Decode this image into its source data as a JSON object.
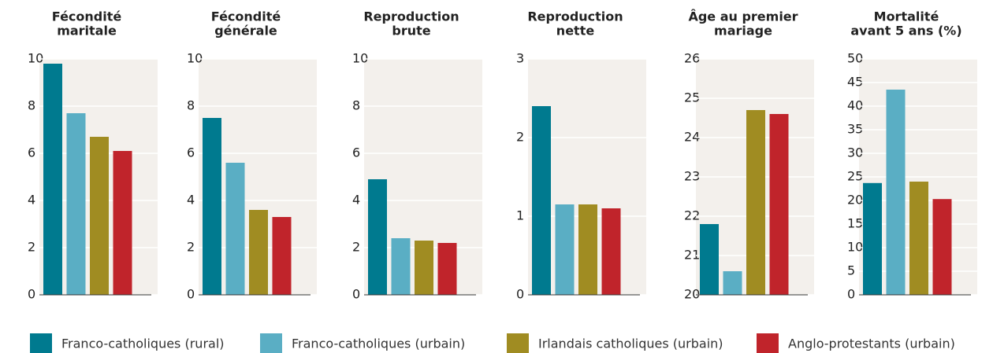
{
  "legend": [
    {
      "name": "Franco-catholiques (rural)",
      "color": "#007a8f"
    },
    {
      "name": "Franco-catholiques (urbain)",
      "color": "#5aaec4"
    },
    {
      "name": "Irlandais catholiques (urbain)",
      "color": "#a08c22"
    },
    {
      "name": "Anglo-protestants (urbain)",
      "color": "#c0242b"
    }
  ],
  "chart_data": [
    {
      "type": "bar",
      "title": [
        "Fécondité",
        "maritale"
      ],
      "values": [
        9.8,
        7.7,
        6.7,
        6.1
      ],
      "ylim": [
        0,
        10
      ],
      "yticks": [
        0,
        2,
        4,
        6,
        8,
        10
      ],
      "grid": true
    },
    {
      "type": "bar",
      "title": [
        "Fécondité",
        "générale"
      ],
      "values": [
        7.5,
        5.6,
        3.6,
        3.3
      ],
      "ylim": [
        0,
        10
      ],
      "yticks": [
        0,
        2,
        4,
        6,
        8,
        10
      ],
      "grid": true
    },
    {
      "type": "bar",
      "title": [
        "Reproduction",
        "brute"
      ],
      "values": [
        4.9,
        2.4,
        2.3,
        2.2
      ],
      "ylim": [
        0,
        10
      ],
      "yticks": [
        0,
        2,
        4,
        6,
        8,
        10
      ],
      "grid": true
    },
    {
      "type": "bar",
      "title": [
        "Reproduction",
        "nette"
      ],
      "values": [
        2.4,
        1.15,
        1.15,
        1.1
      ],
      "ylim": [
        0,
        3
      ],
      "yticks": [
        0,
        1,
        2,
        3
      ],
      "grid": true
    },
    {
      "type": "bar",
      "title": [
        "Âge au premier",
        "mariage"
      ],
      "values": [
        21.8,
        20.6,
        24.7,
        24.6
      ],
      "ylim": [
        20,
        26
      ],
      "yticks": [
        20,
        21,
        22,
        23,
        24,
        25,
        26
      ],
      "grid": true
    },
    {
      "type": "bar",
      "title": [
        "Mortalité",
        "avant 5 ans (%)"
      ],
      "values": [
        23.7,
        43.5,
        24,
        20.3
      ],
      "ylim": [
        0,
        50
      ],
      "yticks": [
        0,
        5,
        10,
        15,
        20,
        25,
        30,
        35,
        40,
        45,
        50
      ],
      "grid": true
    }
  ]
}
